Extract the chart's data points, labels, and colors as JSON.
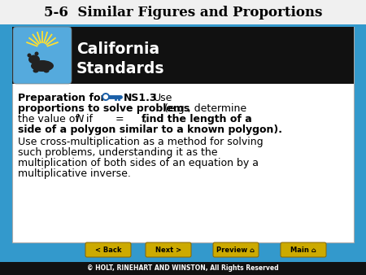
{
  "title": "5-6  Similar Figures and Proportions",
  "bg_color": "#3399CC",
  "title_bg_color": "#f0f0f0",
  "title_text_color": "#000000",
  "card_bg_color": "#ffffff",
  "header_bg_color": "#111111",
  "bear_box_color": "#55AADD",
  "footer_bg": "#111111",
  "footer_text_color": "#ffffff",
  "footer_text": "© HOLT, RINEHART AND WINSTON, All Rights Reserved",
  "button_color": "#CCAA00",
  "button_labels": [
    "< Back",
    "Next >",
    "Preview ⌂",
    "Main ⌂"
  ],
  "key_color": "#1a5fa8"
}
